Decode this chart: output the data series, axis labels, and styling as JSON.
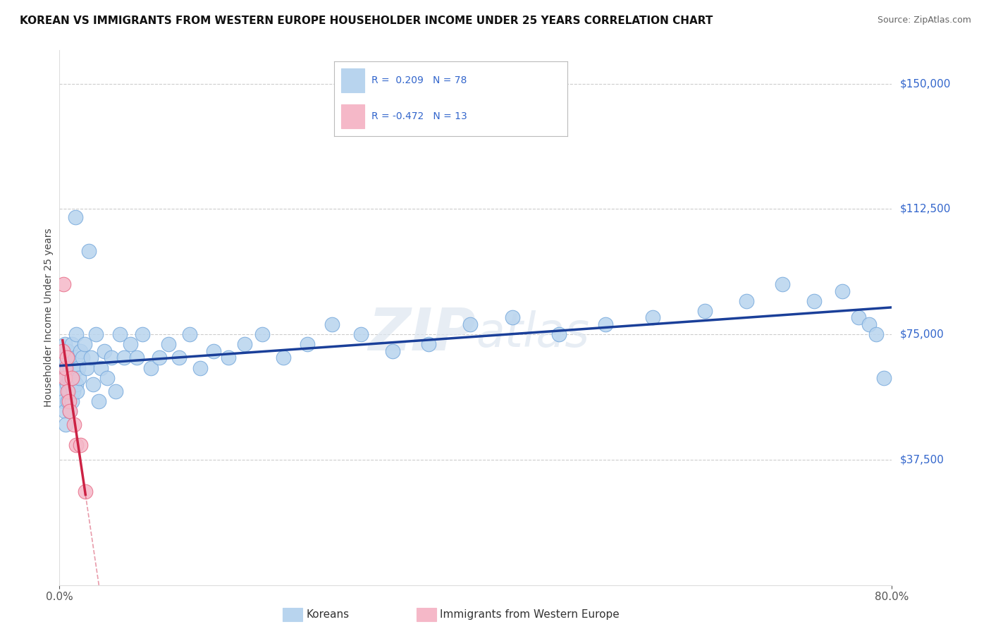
{
  "title": "KOREAN VS IMMIGRANTS FROM WESTERN EUROPE HOUSEHOLDER INCOME UNDER 25 YEARS CORRELATION CHART",
  "source": "Source: ZipAtlas.com",
  "ylabel": "Householder Income Under 25 years",
  "xlim": [
    0.0,
    0.8
  ],
  "ylim": [
    0,
    160000
  ],
  "yticks": [
    0,
    37500,
    75000,
    112500,
    150000
  ],
  "ytick_labels": [
    "",
    "$37,500",
    "$75,000",
    "$112,500",
    "$150,000"
  ],
  "background_color": "#ffffff",
  "grid_color": "#cccccc",
  "korean_color": "#b8d4ee",
  "korean_edge_color": "#7aabdd",
  "immigrant_color": "#f5b8c8",
  "immigrant_edge_color": "#e8708a",
  "trend_korean_color": "#1a3f99",
  "trend_immigrant_color": "#cc2244",
  "legend_R_korean": "R =  0.209",
  "legend_N_korean": "N = 78",
  "legend_R_immigrant": "R = -0.472",
  "legend_N_immigrant": "N = 13",
  "korean_x": [
    0.002,
    0.003,
    0.004,
    0.004,
    0.005,
    0.005,
    0.006,
    0.007,
    0.007,
    0.008,
    0.008,
    0.009,
    0.009,
    0.01,
    0.01,
    0.011,
    0.011,
    0.012,
    0.012,
    0.013,
    0.013,
    0.014,
    0.015,
    0.015,
    0.016,
    0.016,
    0.017,
    0.018,
    0.019,
    0.02,
    0.022,
    0.024,
    0.026,
    0.028,
    0.03,
    0.032,
    0.035,
    0.038,
    0.04,
    0.043,
    0.046,
    0.05,
    0.054,
    0.058,
    0.062,
    0.068,
    0.074,
    0.08,
    0.088,
    0.096,
    0.105,
    0.115,
    0.125,
    0.135,
    0.148,
    0.162,
    0.178,
    0.195,
    0.215,
    0.238,
    0.262,
    0.29,
    0.32,
    0.355,
    0.395,
    0.435,
    0.48,
    0.525,
    0.57,
    0.62,
    0.66,
    0.695,
    0.725,
    0.752,
    0.768,
    0.778,
    0.785,
    0.792
  ],
  "korean_y": [
    58000,
    62000,
    55000,
    68000,
    52000,
    72000,
    48000,
    65000,
    60000,
    55000,
    70000,
    62000,
    58000,
    65000,
    52000,
    60000,
    68000,
    55000,
    72000,
    62000,
    58000,
    65000,
    110000,
    68000,
    75000,
    60000,
    58000,
    65000,
    62000,
    70000,
    68000,
    72000,
    65000,
    100000,
    68000,
    60000,
    75000,
    55000,
    65000,
    70000,
    62000,
    68000,
    58000,
    75000,
    68000,
    72000,
    68000,
    75000,
    65000,
    68000,
    72000,
    68000,
    75000,
    65000,
    70000,
    68000,
    72000,
    75000,
    68000,
    72000,
    78000,
    75000,
    70000,
    72000,
    78000,
    80000,
    75000,
    78000,
    80000,
    82000,
    85000,
    90000,
    85000,
    88000,
    80000,
    78000,
    75000,
    62000
  ],
  "immigrant_x": [
    0.003,
    0.004,
    0.005,
    0.006,
    0.007,
    0.008,
    0.009,
    0.01,
    0.012,
    0.014,
    0.016,
    0.02,
    0.025
  ],
  "immigrant_y": [
    70000,
    90000,
    62000,
    65000,
    68000,
    58000,
    55000,
    52000,
    62000,
    48000,
    42000,
    42000,
    28000
  ]
}
